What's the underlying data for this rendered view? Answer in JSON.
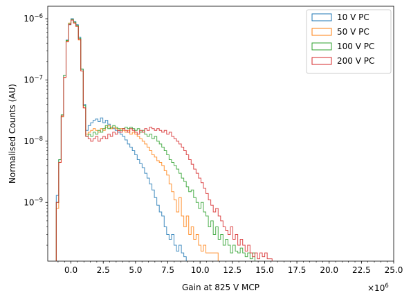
{
  "chart_data": {
    "type": "histogram",
    "xlabel": "Gain at 825 V MCP",
    "ylabel": "Normalised Counts (AU)",
    "x_multiplier_label": "×10",
    "x_multiplier_exp": "6",
    "xscale_factor": 1000000,
    "xlim": [
      -1.8,
      25.0
    ],
    "ylim": [
      1.1e-10,
      1.6e-06
    ],
    "yscale": "log",
    "bin_width": 0.19,
    "x_ticks": [
      0.0,
      2.5,
      5.0,
      7.5,
      10.0,
      12.5,
      15.0,
      17.5,
      20.0,
      22.5,
      25.0
    ],
    "x_tick_labels": [
      "0.0",
      "2.5",
      "5.0",
      "7.5",
      "10.0",
      "12.5",
      "15.0",
      "17.5",
      "20.0",
      "22.5",
      "25.0"
    ],
    "y_ticks": [
      {
        "value": 1e-09,
        "base": "10",
        "exp": "−9"
      },
      {
        "value": 1e-08,
        "base": "10",
        "exp": "−8"
      },
      {
        "value": 1e-07,
        "base": "10",
        "exp": "−7"
      },
      {
        "value": 1e-06,
        "base": "10",
        "exp": "−6"
      }
    ],
    "legend_position": "top-right",
    "series": [
      {
        "name": "10 V PC",
        "color": "#1f77b4",
        "x": [
          -1.14,
          -0.95,
          -0.76,
          -0.57,
          -0.38,
          -0.19,
          0.0,
          0.19,
          0.38,
          0.57,
          0.76,
          0.95,
          1.14,
          1.33,
          1.52,
          1.71,
          1.9,
          2.09,
          2.28,
          2.47,
          2.66,
          2.85,
          3.04,
          3.23,
          3.42,
          3.61,
          3.8,
          3.99,
          4.18,
          4.37,
          4.56,
          4.75,
          4.94,
          5.13,
          5.32,
          5.51,
          5.7,
          5.89,
          6.08,
          6.27,
          6.46,
          6.65,
          6.84,
          7.03,
          7.22,
          7.41,
          7.6,
          7.79,
          7.98,
          8.17,
          8.36,
          8.55,
          8.74
        ],
        "y": [
          1.3e-09,
          5e-09,
          2.5e-08,
          1.2e-07,
          4.5e-07,
          8e-07,
          1e-06,
          9e-07,
          8e-07,
          5e-07,
          1.5e-07,
          4e-08,
          1.5e-08,
          1.8e-08,
          2e-08,
          2.2e-08,
          2.3e-08,
          2.1e-08,
          2.4e-08,
          2e-08,
          2.2e-08,
          1.9e-08,
          1.7e-08,
          1.6e-08,
          1.5e-08,
          1.4e-08,
          1.3e-08,
          1.2e-08,
          1.05e-08,
          9e-09,
          8e-09,
          7e-09,
          6e-09,
          5e-09,
          4.3e-09,
          3.7e-09,
          3e-09,
          2.5e-09,
          2e-09,
          1.6e-09,
          1.2e-09,
          9e-10,
          7e-10,
          6e-10,
          4e-10,
          3e-10,
          2.5e-10,
          3e-10,
          2e-10,
          1.6e-10,
          2e-10,
          1.5e-10,
          1.3e-10
        ]
      },
      {
        "name": "50 V PC",
        "color": "#ff7f0e",
        "x": [
          -1.14,
          -0.95,
          -0.76,
          -0.57,
          -0.38,
          -0.19,
          0.0,
          0.19,
          0.38,
          0.57,
          0.76,
          0.95,
          1.14,
          1.33,
          1.52,
          1.71,
          1.9,
          2.09,
          2.28,
          2.47,
          2.66,
          2.85,
          3.04,
          3.23,
          3.42,
          3.61,
          3.8,
          3.99,
          4.18,
          4.37,
          4.56,
          4.75,
          4.94,
          5.13,
          5.32,
          5.51,
          5.7,
          5.89,
          6.08,
          6.27,
          6.46,
          6.65,
          6.84,
          7.03,
          7.22,
          7.41,
          7.6,
          7.79,
          7.98,
          8.17,
          8.36,
          8.55,
          8.74,
          8.93,
          9.12,
          9.31,
          9.5,
          9.69,
          9.88,
          10.07,
          10.26,
          10.45,
          10.64,
          10.83,
          11.02,
          11.21
        ],
        "y": [
          8e-10,
          4.5e-09,
          2.5e-08,
          1.1e-07,
          4.3e-07,
          8.5e-07,
          9.5e-07,
          8.5e-07,
          7.5e-07,
          4.5e-07,
          1.4e-07,
          3.5e-08,
          1.3e-08,
          1.4e-08,
          1.5e-08,
          1.6e-08,
          1.5e-08,
          1.4e-08,
          1.6e-08,
          1.5e-08,
          1.7e-08,
          1.8e-08,
          1.6e-08,
          1.7e-08,
          1.6e-08,
          1.5e-08,
          1.6e-08,
          1.5e-08,
          1.4e-08,
          1.5e-08,
          1.3e-08,
          1.4e-08,
          1.3e-08,
          1.2e-08,
          1.1e-08,
          1e-08,
          9e-09,
          8e-09,
          7e-09,
          6e-09,
          5.5e-09,
          4.8e-09,
          4.5e-09,
          4e-09,
          3.3e-09,
          2.8e-09,
          2e-09,
          1.5e-09,
          1.1e-09,
          7e-10,
          1.2e-09,
          6e-10,
          4e-10,
          6e-10,
          3e-10,
          4e-10,
          2.5e-10,
          3e-10,
          2e-10,
          1.6e-10,
          2e-10,
          1.5e-10,
          1.5e-10,
          1.5e-10,
          1.5e-10,
          1.5e-10
        ]
      },
      {
        "name": "100 V PC",
        "color": "#2ca02c",
        "x": [
          -1.14,
          -0.95,
          -0.76,
          -0.57,
          -0.38,
          -0.19,
          0.0,
          0.19,
          0.38,
          0.57,
          0.76,
          0.95,
          1.14,
          1.33,
          1.52,
          1.71,
          1.9,
          2.09,
          2.28,
          2.47,
          2.66,
          2.85,
          3.04,
          3.23,
          3.42,
          3.61,
          3.8,
          3.99,
          4.18,
          4.37,
          4.56,
          4.75,
          4.94,
          5.13,
          5.32,
          5.51,
          5.7,
          5.89,
          6.08,
          6.27,
          6.46,
          6.65,
          6.84,
          7.03,
          7.22,
          7.41,
          7.6,
          7.79,
          7.98,
          8.17,
          8.36,
          8.55,
          8.74,
          8.93,
          9.12,
          9.31,
          9.5,
          9.69,
          9.88,
          10.07,
          10.26,
          10.45,
          10.64,
          10.83,
          11.02,
          11.21,
          11.4,
          11.59,
          11.78,
          11.97,
          12.16,
          12.35,
          12.54,
          12.73,
          12.92,
          13.11,
          13.3,
          13.49,
          13.68,
          13.87,
          14.06
        ],
        "y": [
          1e-09,
          5e-09,
          2.7e-08,
          1.2e-07,
          4.4e-07,
          8.3e-07,
          9.8e-07,
          8.8e-07,
          7.8e-07,
          4.8e-07,
          1.5e-07,
          3.8e-08,
          1.2e-08,
          1.3e-08,
          1.2e-08,
          1.4e-08,
          1.3e-08,
          1.5e-08,
          1.4e-08,
          1.6e-08,
          1.8e-08,
          1.6e-08,
          1.7e-08,
          1.8e-08,
          1.7e-08,
          1.6e-08,
          1.5e-08,
          1.6e-08,
          1.7e-08,
          1.6e-08,
          1.7e-08,
          1.6e-08,
          1.5e-08,
          1.6e-08,
          1.4e-08,
          1.5e-08,
          1.3e-08,
          1.2e-08,
          1.3e-08,
          1.1e-08,
          1.2e-08,
          1e-08,
          9e-09,
          8e-09,
          7e-09,
          6e-09,
          5e-09,
          4.5e-09,
          4e-09,
          3.5e-09,
          3e-09,
          2.5e-09,
          2.2e-09,
          1.8e-09,
          1.5e-09,
          1.6e-09,
          1.2e-09,
          1e-09,
          8e-10,
          1e-09,
          7e-10,
          6e-10,
          4e-10,
          5e-10,
          3e-10,
          4e-10,
          2.5e-10,
          3e-10,
          2e-10,
          2.5e-10,
          2e-10,
          1.5e-10,
          2e-10,
          1.6e-10,
          1.5e-10,
          1.8e-10,
          1.5e-10,
          1.3e-10,
          1.5e-10,
          1.2e-10,
          1.5e-10
        ]
      },
      {
        "name": "200 V PC",
        "color": "#d62728",
        "x": [
          -1.14,
          -0.95,
          -0.76,
          -0.57,
          -0.38,
          -0.19,
          0.0,
          0.19,
          0.38,
          0.57,
          0.76,
          0.95,
          1.14,
          1.33,
          1.52,
          1.71,
          1.9,
          2.09,
          2.28,
          2.47,
          2.66,
          2.85,
          3.04,
          3.23,
          3.42,
          3.61,
          3.8,
          3.99,
          4.18,
          4.37,
          4.56,
          4.75,
          4.94,
          5.13,
          5.32,
          5.51,
          5.7,
          5.89,
          6.08,
          6.27,
          6.46,
          6.65,
          6.84,
          7.03,
          7.22,
          7.41,
          7.6,
          7.79,
          7.98,
          8.17,
          8.36,
          8.55,
          8.74,
          8.93,
          9.12,
          9.31,
          9.5,
          9.69,
          9.88,
          10.07,
          10.26,
          10.45,
          10.64,
          10.83,
          11.02,
          11.21,
          11.4,
          11.59,
          11.78,
          11.97,
          12.16,
          12.35,
          12.54,
          12.73,
          12.92,
          13.11,
          13.3,
          13.49,
          13.68,
          13.87,
          14.06,
          14.25,
          14.44,
          14.63,
          14.82,
          15.01,
          15.2,
          15.39
        ],
        "y": [
          1e-09,
          4.5e-09,
          2.6e-08,
          1.1e-07,
          4.2e-07,
          8e-07,
          9.5e-07,
          8.5e-07,
          7.5e-07,
          4.6e-07,
          1.4e-07,
          3.5e-08,
          1.2e-08,
          1.1e-08,
          1e-08,
          1.1e-08,
          1.2e-08,
          1e-08,
          1.1e-08,
          1.2e-08,
          1.1e-08,
          1.3e-08,
          1.2e-08,
          1.4e-08,
          1.3e-08,
          1.5e-08,
          1.4e-08,
          1.6e-08,
          1.5e-08,
          1.4e-08,
          1.6e-08,
          1.5e-08,
          1.4e-08,
          1.3e-08,
          1.5e-08,
          1.4e-08,
          1.6e-08,
          1.5e-08,
          1.7e-08,
          1.6e-08,
          1.5e-08,
          1.6e-08,
          1.5e-08,
          1.4e-08,
          1.5e-08,
          1.3e-08,
          1.4e-08,
          1.2e-08,
          1.1e-08,
          1e-08,
          9e-09,
          8e-09,
          7e-09,
          6e-09,
          5e-09,
          4.2e-09,
          3.5e-09,
          3e-09,
          2.5e-09,
          2.1e-09,
          1.7e-09,
          1.4e-09,
          1.1e-09,
          9e-10,
          7e-10,
          8e-10,
          6e-10,
          5e-10,
          4e-10,
          3.5e-10,
          3e-10,
          4e-10,
          2.5e-10,
          3e-10,
          2e-10,
          2.5e-10,
          2e-10,
          1.6e-10,
          2e-10,
          1.5e-10,
          1.3e-10,
          1.5e-10,
          1.2e-10,
          1.5e-10,
          1.3e-10,
          1.5e-10,
          1.2e-10,
          1.2e-10
        ]
      }
    ]
  }
}
